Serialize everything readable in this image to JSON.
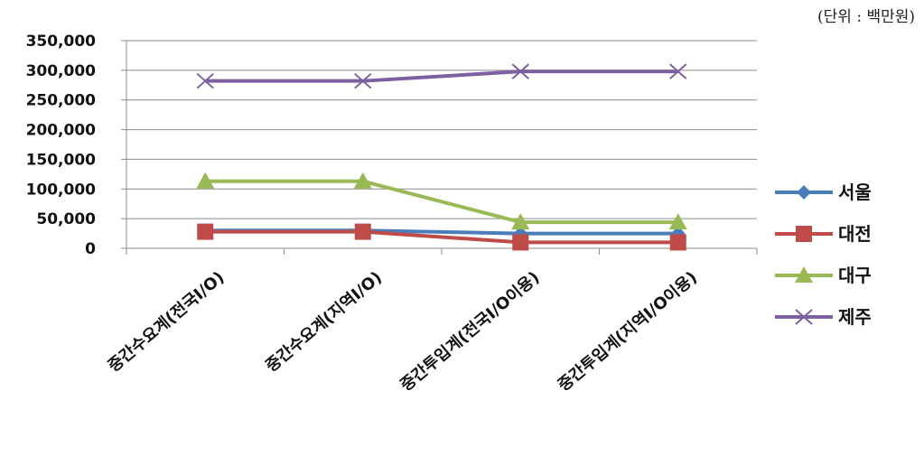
{
  "unit_note": "(단위 : 백만원)",
  "chart_data": {
    "type": "line",
    "categories": [
      "중간수요계(전국I/O)",
      "중간수요계(지역I/O)",
      "중간투입계(전국I/O이용)",
      "중간투입계(지역I/O이용)"
    ],
    "y_ticks": [
      "0",
      "50,000",
      "100,000",
      "150,000",
      "200,000",
      "250,000",
      "300,000",
      "350,000"
    ],
    "ylim": [
      0,
      350000
    ],
    "grid": true,
    "legend_position": "right",
    "series": [
      {
        "name": "서울",
        "values": [
          30000,
          30000,
          25000,
          25000
        ],
        "color": "#4a7ebb",
        "marker": "diamond"
      },
      {
        "name": "대전",
        "values": [
          28000,
          28000,
          10000,
          10000
        ],
        "color": "#be4b48",
        "marker": "square"
      },
      {
        "name": "대구",
        "values": [
          113000,
          113000,
          44000,
          44000
        ],
        "color": "#98b954",
        "marker": "triangle"
      },
      {
        "name": "제주",
        "values": [
          282000,
          282000,
          298000,
          298000
        ],
        "color": "#7d60a0",
        "marker": "x"
      }
    ]
  }
}
